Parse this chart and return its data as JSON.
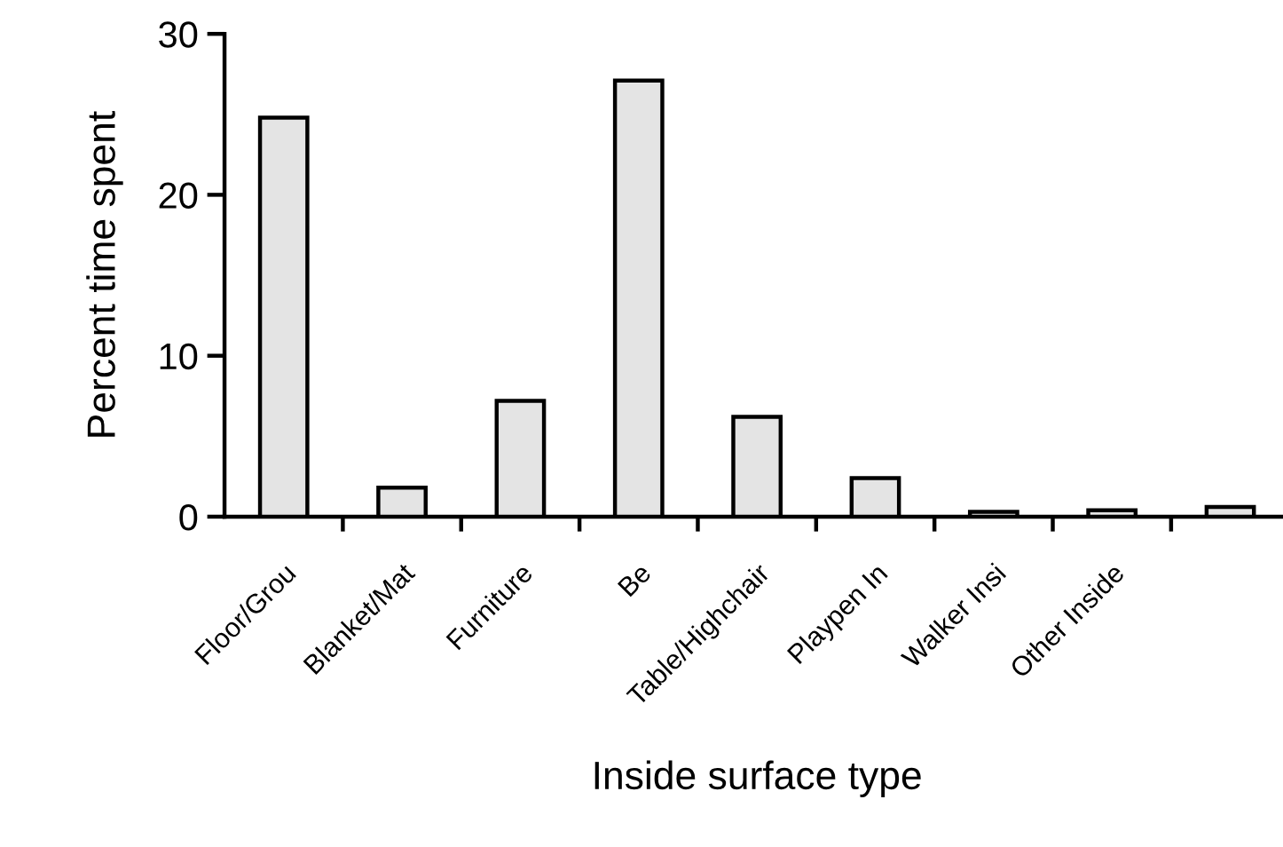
{
  "chart_data": {
    "type": "bar",
    "xlabel": "Inside surface type",
    "ylabel": "Percent time spent",
    "categories": [
      "Floor/Grou",
      "Blanket/Mat",
      "Furniture",
      "Be",
      "Table/Highchair",
      "Playpen In",
      "Walker Insi",
      "Other Inside",
      null
    ],
    "values": [
      24.8,
      1.8,
      7.2,
      27.1,
      6.2,
      2.4,
      0.3,
      0.4,
      0.6
    ],
    "color": "#e4e4e4",
    "ylim": [
      0,
      30
    ],
    "yticks": [
      0,
      10,
      20,
      30
    ],
    "grid": false
  }
}
